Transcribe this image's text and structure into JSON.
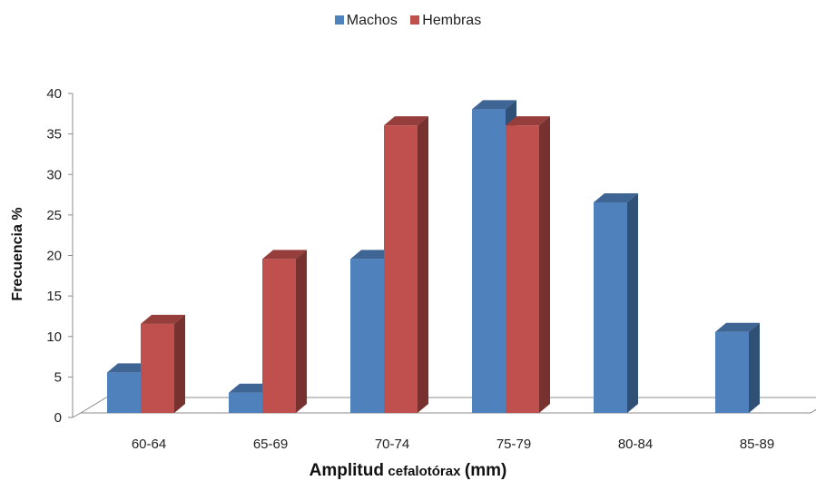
{
  "chart_data": {
    "type": "bar",
    "title": "",
    "categories": [
      "60-64",
      "65-69",
      "70-74",
      "75-79",
      "80-84",
      "85-89"
    ],
    "series": [
      {
        "name": "Machos",
        "color": "#4F81BD",
        "values": [
          5,
          2.5,
          19,
          37.5,
          26,
          10
        ]
      },
      {
        "name": "Hembras",
        "color": "#C0504D",
        "values": [
          11,
          19,
          35.5,
          35.5,
          0,
          0
        ]
      }
    ],
    "ylabel": "Frecuencia %",
    "xlabel_parts": [
      "Amplitud",
      "cefalotórax",
      "(mm)"
    ],
    "ylim": [
      0,
      40
    ],
    "yticks": [
      0,
      5,
      10,
      15,
      20,
      25,
      30,
      35,
      40
    ],
    "legend_position": "top",
    "style": "3d-columns",
    "grid": false
  }
}
